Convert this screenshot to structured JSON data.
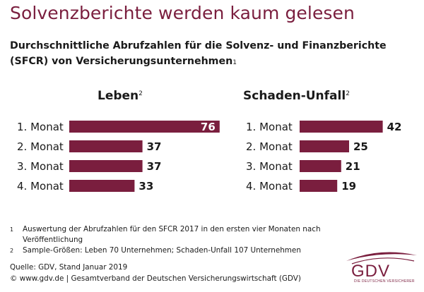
{
  "title": "Solvenzberichte werden kaum gelesen",
  "subtitle": "Durchschnittliche Abrufzahlen für die Solvenz- und Finanzberichte (SFCR) von Versicherungsunternehmen",
  "subtitle_note": "1",
  "colors": {
    "brand": "#7a1e3e",
    "bar": "#7a1e3e",
    "label_inside": "#ffffff",
    "text": "#1a1a1a"
  },
  "chart_data": [
    {
      "type": "bar",
      "orientation": "horizontal",
      "title": "Leben",
      "title_note": "2",
      "categories": [
        "1. Monat",
        "2. Monat",
        "3. Monat",
        "4. Monat"
      ],
      "values": [
        76,
        37,
        37,
        33
      ]
    },
    {
      "type": "bar",
      "orientation": "horizontal",
      "title": "Schaden-Unfall",
      "title_note": "2",
      "categories": [
        "1. Monat",
        "2. Monat",
        "3. Monat",
        "4. Monat"
      ],
      "values": [
        42,
        25,
        21,
        19
      ]
    }
  ],
  "footnotes": [
    {
      "mark": "1",
      "text": "Auswertung der Abrufzahlen für den SFCR 2017 in den ersten vier Monaten nach Veröffentlichung"
    },
    {
      "mark": "2",
      "text": "Sample-Größen: Leben 70 Unternehmen; Schaden-Unfall 107 Unternehmen"
    }
  ],
  "source": "Quelle: GDV, Stand Januar 2019",
  "copyright": "© www.gdv.de | Gesamtverband der Deutschen Versicherungswirtschaft (GDV)",
  "logo": {
    "text": "GDV",
    "subtext": "DIE DEUTSCHEN VERSICHERER"
  }
}
